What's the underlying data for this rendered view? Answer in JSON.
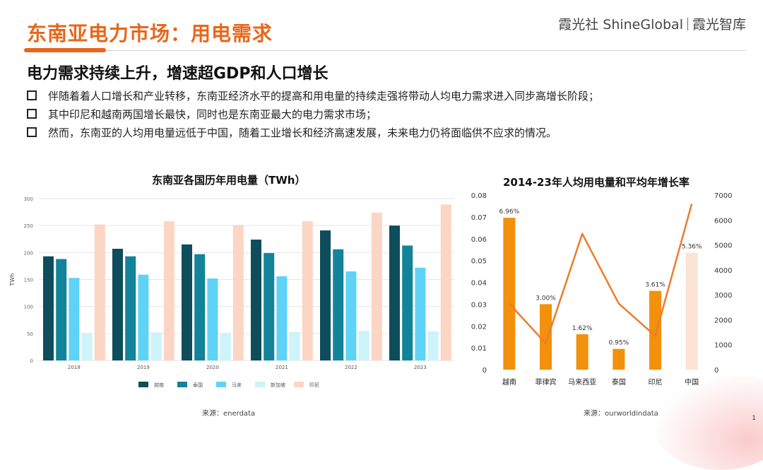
{
  "header": {
    "title": "东南亚电力市场：用电需求",
    "brand_left": "霞光社 ShineGlobal",
    "brand_right": "霞光智库"
  },
  "subtitle": "电力需求持续上升，增速超GDP和人口增长",
  "bullets": [
    "伴随着着人口增长和产业转移，东南亚经济水平的提高和用电量的持续走强将带动人均电力需求进入同步高增长阶段；",
    "其中印尼和越南两国增长最快，同时也是东南亚最大的电力需求市场；",
    "然而，东南亚的人均用电量远低于中国，随着工业增长和经济高速发展，未来电力仍将面临供不应求的情况。"
  ],
  "left_source": "来源：enerdata",
  "right_source": "来源：ourworldindata",
  "page_number": "1",
  "chart_data": [
    {
      "type": "bar",
      "title": "东南亚各国历年用电量（TWh）",
      "ylabel": "TWh",
      "xlabel": "",
      "ylim": [
        0,
        300
      ],
      "yticks": [
        "0",
        "50",
        "100",
        "150",
        "200",
        "250",
        "300"
      ],
      "categories": [
        "2018",
        "2019",
        "2020",
        "2021",
        "2022",
        "2023"
      ],
      "grid": true,
      "legend_position": "bottom",
      "series": [
        {
          "name": "越南",
          "color": "#0d4d5c",
          "values": [
            193,
            207,
            215,
            224,
            241,
            250
          ]
        },
        {
          "name": "泰国",
          "color": "#13839a",
          "values": [
            188,
            193,
            197,
            199,
            206,
            213
          ]
        },
        {
          "name": "马来",
          "color": "#5fd3f5",
          "values": [
            153,
            159,
            152,
            156,
            165,
            172
          ]
        },
        {
          "name": "新加坡",
          "color": "#cdf3fb",
          "values": [
            50,
            52,
            51,
            53,
            55,
            54
          ]
        },
        {
          "name": "印尼",
          "color": "#fcd5c4",
          "values": [
            252,
            258,
            251,
            258,
            274,
            289
          ]
        }
      ]
    },
    {
      "type": "bar",
      "title": "2014-23年人均用电量和平均年增长率",
      "categories": [
        "越南",
        "菲律宾",
        "马来西亚",
        "泰国",
        "印尼",
        "中国"
      ],
      "ylim": [
        0,
        0.08
      ],
      "yticks": [
        "0",
        "0.01",
        "0.02",
        "0.03",
        "0.04",
        "0.05",
        "0.06",
        "0.07",
        "0.08"
      ],
      "y2lim": [
        0,
        7000
      ],
      "y2ticks": [
        "0",
        "1000",
        "2000",
        "3000",
        "4000",
        "5000",
        "6000",
        "7000"
      ],
      "bar_color": "#f3900c",
      "last_bar_color": "#fbe3d3",
      "line_color": "#ec7c2c",
      "bars": [
        0.0696,
        0.03,
        0.0162,
        0.0095,
        0.0361,
        0.0536
      ],
      "bar_labels": [
        "6.96%",
        "3.00%",
        "1.62%",
        "0.95%",
        "3.61%",
        "5.36%"
      ],
      "line_values": [
        2650,
        1050,
        5450,
        2650,
        1350,
        6650
      ]
    }
  ]
}
